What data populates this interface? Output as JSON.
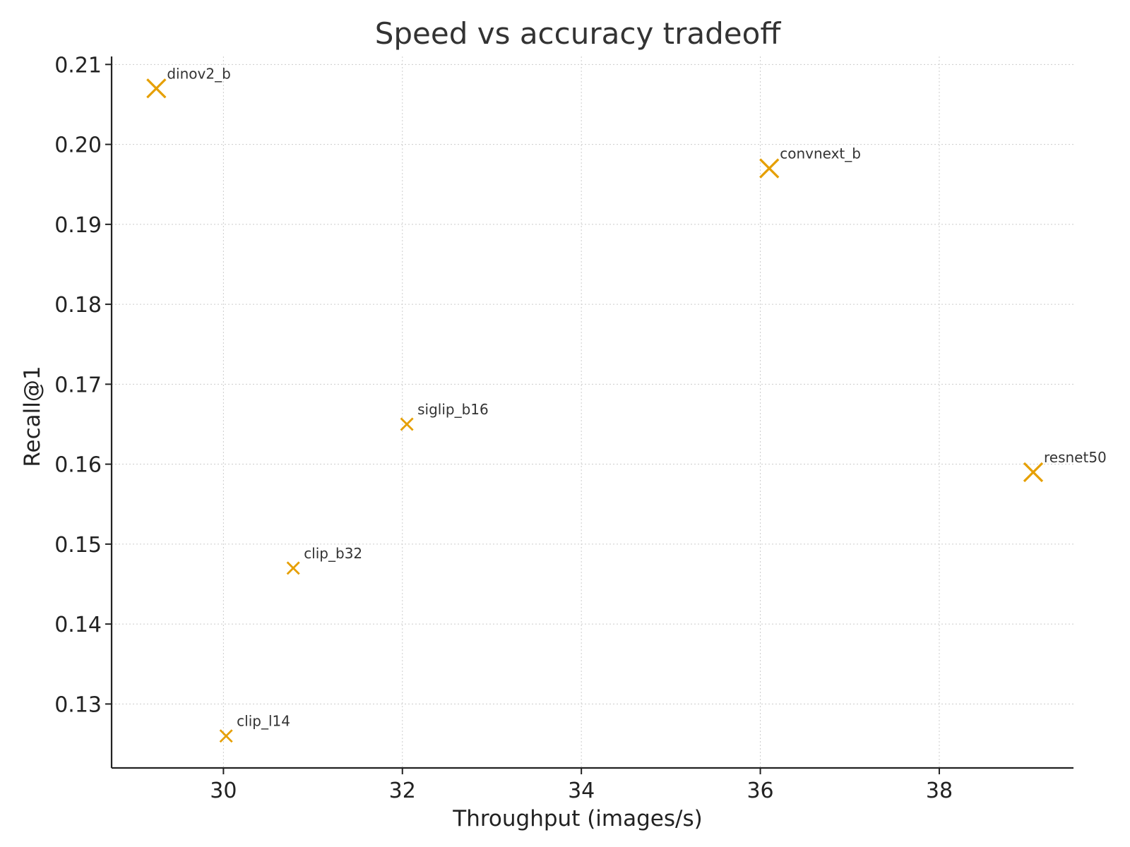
{
  "chart_data": {
    "type": "scatter",
    "title": "Speed vs accuracy tradeoff",
    "xlabel": "Throughput (images/s)",
    "ylabel": "Recall@1",
    "xlim": [
      28.75,
      39.5
    ],
    "ylim": [
      0.122,
      0.211
    ],
    "xticks": [
      30,
      32,
      34,
      36,
      38
    ],
    "yticks": [
      0.13,
      0.14,
      0.15,
      0.16,
      0.17,
      0.18,
      0.19,
      0.2,
      0.21
    ],
    "ytick_labels": [
      "0.13",
      "0.14",
      "0.15",
      "0.16",
      "0.17",
      "0.18",
      "0.19",
      "0.20",
      "0.21"
    ],
    "grid": true,
    "marker": "x",
    "color": "#E69F00",
    "points": [
      {
        "label": "dinov2_b",
        "x": 29.25,
        "y": 0.207,
        "size": "large"
      },
      {
        "label": "convnext_b",
        "x": 36.1,
        "y": 0.197,
        "size": "large"
      },
      {
        "label": "siglip_b16",
        "x": 32.05,
        "y": 0.165,
        "size": "small"
      },
      {
        "label": "resnet50",
        "x": 39.05,
        "y": 0.159,
        "size": "large"
      },
      {
        "label": "clip_b32",
        "x": 30.78,
        "y": 0.147,
        "size": "small"
      },
      {
        "label": "clip_l14",
        "x": 30.03,
        "y": 0.126,
        "size": "small"
      }
    ]
  }
}
